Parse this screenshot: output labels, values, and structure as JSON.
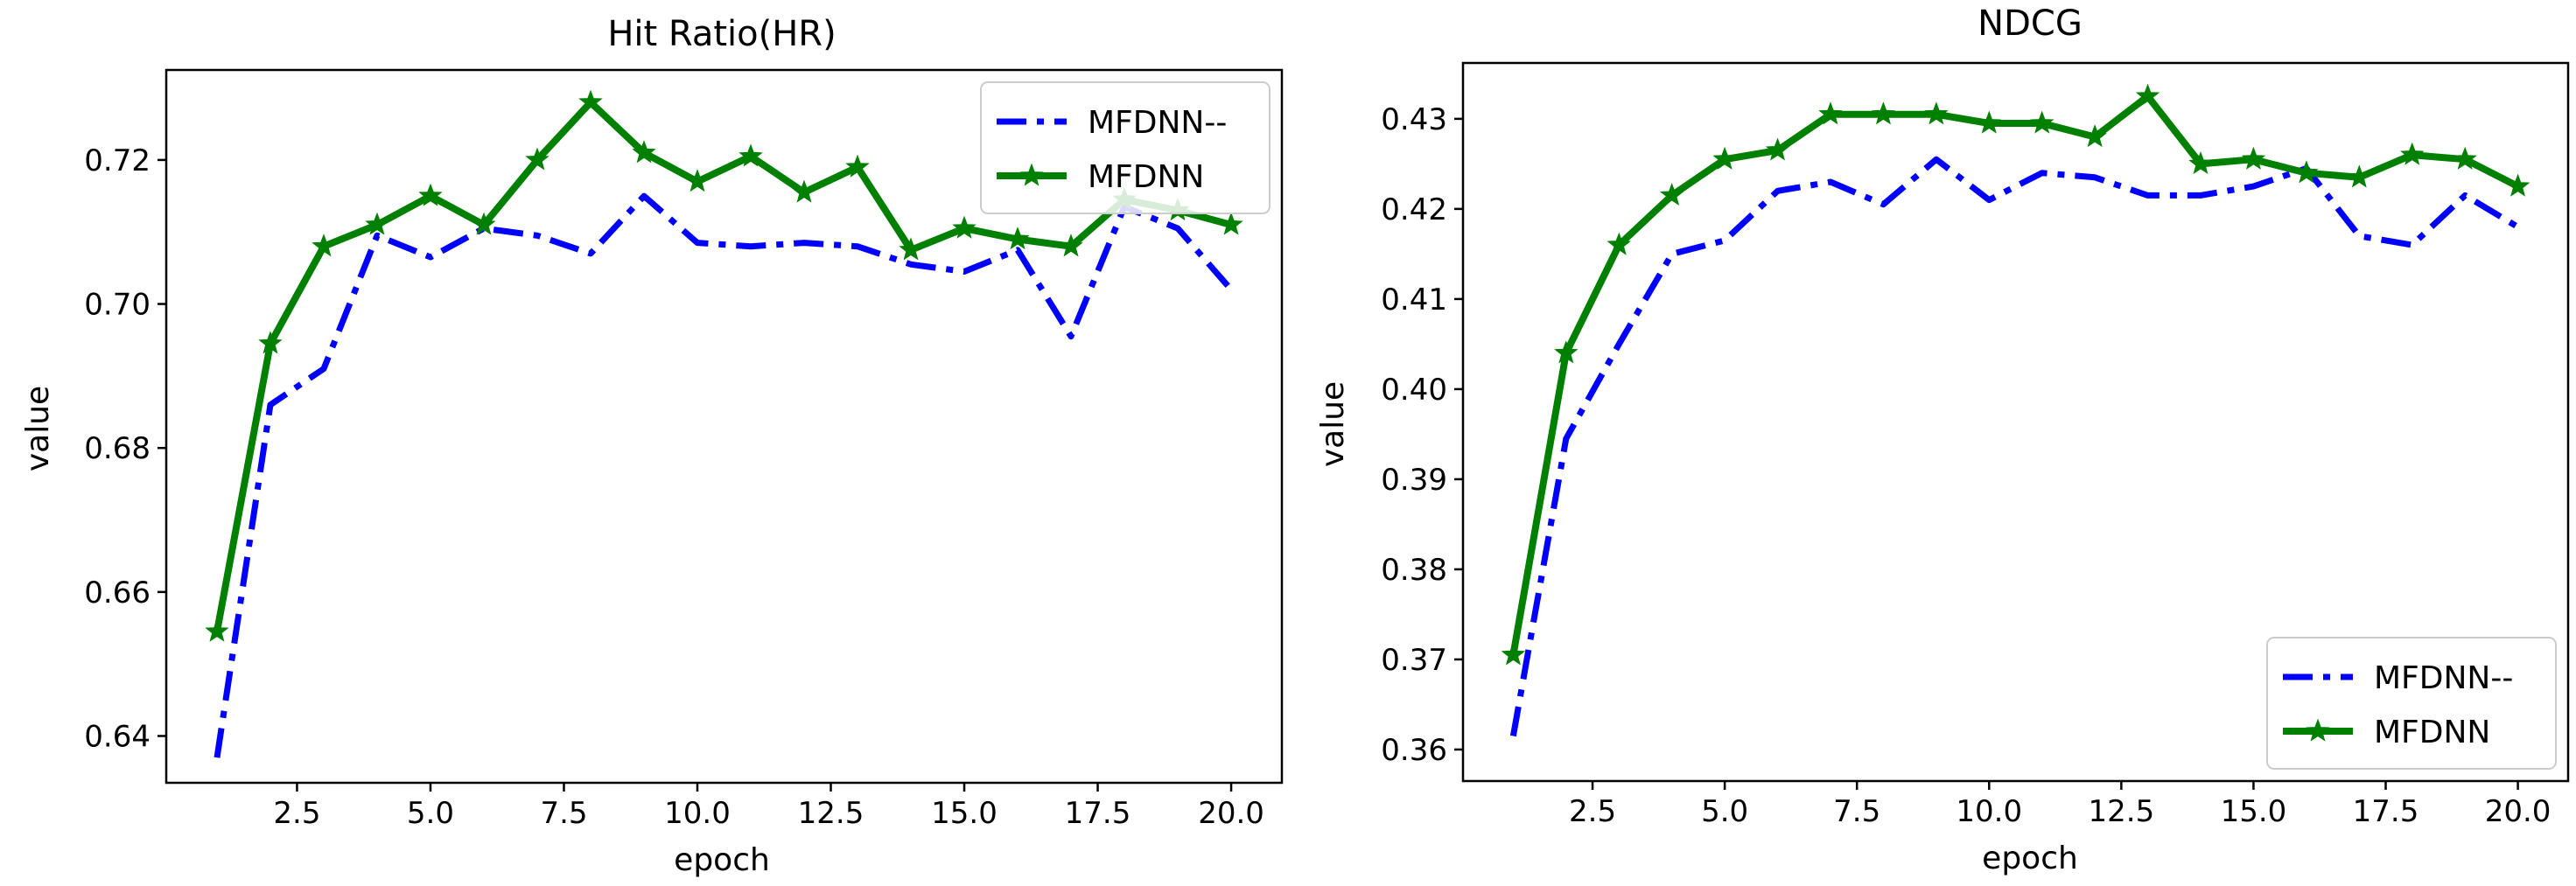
{
  "colors": {
    "mfdnn_minus": "#0000ff",
    "mfdnn": "#008000"
  },
  "chart_data": [
    {
      "type": "line",
      "title": "Hit Ratio(HR)",
      "xlabel": "epoch",
      "ylabel": "value",
      "xlim": [
        0.05,
        20.95
      ],
      "ylim": [
        0.6335,
        0.7325
      ],
      "xticks": [
        2.5,
        5.0,
        7.5,
        10.0,
        12.5,
        15.0,
        17.5,
        20.0
      ],
      "xtick_labels": [
        "2.5",
        "5.0",
        "7.5",
        "10.0",
        "12.5",
        "15.0",
        "17.5",
        "20.0"
      ],
      "yticks": [
        0.64,
        0.66,
        0.68,
        0.7,
        0.72
      ],
      "ytick_labels": [
        "0.64",
        "0.66",
        "0.68",
        "0.70",
        "0.72"
      ],
      "legend_position": "upper-right",
      "x": [
        1,
        2,
        3,
        4,
        5,
        6,
        7,
        8,
        9,
        10,
        11,
        12,
        13,
        14,
        15,
        16,
        17,
        18,
        19,
        20
      ],
      "series": [
        {
          "name": "MFDNN--",
          "style": "dashdot",
          "color": "#0000ff",
          "values": [
            0.637,
            0.686,
            0.691,
            0.7095,
            0.7065,
            0.7105,
            0.7095,
            0.707,
            0.715,
            0.7085,
            0.708,
            0.7085,
            0.708,
            0.7055,
            0.7045,
            0.7075,
            0.6955,
            0.7135,
            0.7105,
            0.702
          ]
        },
        {
          "name": "MFDNN",
          "style": "solid-star",
          "color": "#008000",
          "values": [
            0.6545,
            0.6945,
            0.708,
            0.711,
            0.715,
            0.711,
            0.72,
            0.728,
            0.721,
            0.717,
            0.7205,
            0.7155,
            0.719,
            0.7075,
            0.7105,
            0.709,
            0.708,
            0.7145,
            0.713,
            0.711
          ]
        }
      ]
    },
    {
      "type": "line",
      "title": "NDCG",
      "xlabel": "epoch",
      "ylabel": "value",
      "xlim": [
        0.05,
        20.95
      ],
      "ylim": [
        0.3565,
        0.4362
      ],
      "xticks": [
        2.5,
        5.0,
        7.5,
        10.0,
        12.5,
        15.0,
        17.5,
        20.0
      ],
      "xtick_labels": [
        "2.5",
        "5.0",
        "7.5",
        "10.0",
        "12.5",
        "15.0",
        "17.5",
        "20.0"
      ],
      "yticks": [
        0.36,
        0.37,
        0.38,
        0.39,
        0.4,
        0.41,
        0.42,
        0.43
      ],
      "ytick_labels": [
        "0.36",
        "0.37",
        "0.38",
        "0.39",
        "0.40",
        "0.41",
        "0.42",
        "0.43"
      ],
      "legend_position": "lower-right",
      "x": [
        1,
        2,
        3,
        4,
        5,
        6,
        7,
        8,
        9,
        10,
        11,
        12,
        13,
        14,
        15,
        16,
        17,
        18,
        19,
        20
      ],
      "series": [
        {
          "name": "MFDNN--",
          "style": "dashdot",
          "color": "#0000ff",
          "values": [
            0.3615,
            0.3945,
            0.405,
            0.415,
            0.4165,
            0.422,
            0.423,
            0.4205,
            0.4255,
            0.421,
            0.424,
            0.4235,
            0.4215,
            0.4215,
            0.4225,
            0.4245,
            0.417,
            0.416,
            0.4215,
            0.418
          ]
        },
        {
          "name": "MFDNN",
          "style": "solid-star",
          "color": "#008000",
          "values": [
            0.3705,
            0.404,
            0.416,
            0.4215,
            0.4255,
            0.4265,
            0.4305,
            0.4305,
            0.4305,
            0.4295,
            0.4295,
            0.428,
            0.4325,
            0.425,
            0.4255,
            0.424,
            0.4235,
            0.426,
            0.4255,
            0.4225
          ]
        }
      ]
    }
  ]
}
